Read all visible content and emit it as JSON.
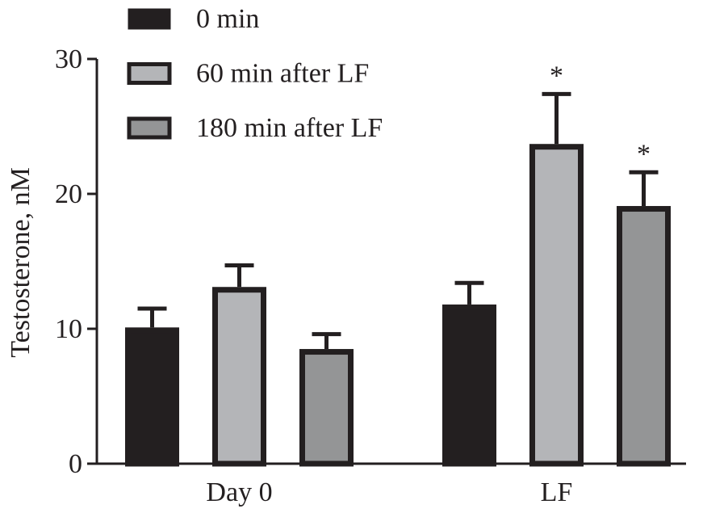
{
  "chart_data": {
    "type": "bar",
    "categories": [
      "Day 0",
      "LF"
    ],
    "ylabel": "Testosterone, nM",
    "xlabel": "",
    "ylim": [
      0,
      30
    ],
    "yticks": [
      "0",
      "10",
      "20",
      "30"
    ],
    "grid": false,
    "legend_placement": "top-left",
    "series": [
      {
        "name": "0 min",
        "color": "#231f20",
        "values": [
          10.1,
          11.8
        ],
        "errors": [
          1.4,
          1.6
        ],
        "significance": [
          "",
          ""
        ]
      },
      {
        "name": "60 min after LF",
        "color": "#b4b5b8",
        "values": [
          13.1,
          23.7
        ],
        "errors": [
          1.6,
          3.7
        ],
        "significance": [
          "",
          "*"
        ]
      },
      {
        "name": "180 min after LF",
        "color": "#949596",
        "values": [
          8.5,
          19.1
        ],
        "errors": [
          1.1,
          2.5
        ],
        "significance": [
          "",
          "*"
        ]
      }
    ]
  }
}
